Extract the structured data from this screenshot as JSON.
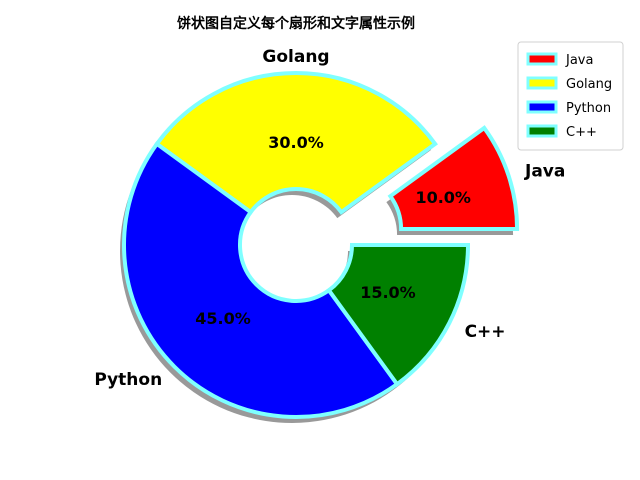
{
  "chart_data": {
    "type": "pie",
    "title": "饼状图自定义每个扇形和文字属性示例",
    "categories": [
      "Java",
      "Golang",
      "Python",
      "C++"
    ],
    "values": [
      10.0,
      30.0,
      45.0,
      15.0
    ],
    "pct_labels": [
      "10.0%",
      "30.0%",
      "45.0%",
      "15.0%"
    ],
    "colors": [
      "#ff0000",
      "#ffff00",
      "#0000ff",
      "#008000"
    ],
    "edge_color": "#7fffff",
    "explode": [
      0.3,
      0,
      0,
      0
    ],
    "donut": true,
    "shadow": true,
    "start_angle_deg": 0,
    "legend": {
      "position": "top-right",
      "entries": [
        "Java",
        "Golang",
        "Python",
        "C++"
      ]
    }
  }
}
